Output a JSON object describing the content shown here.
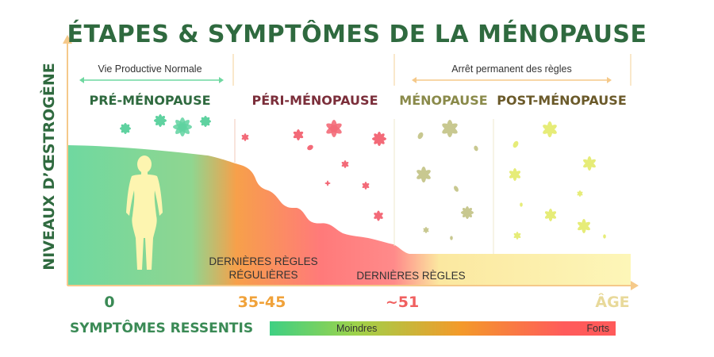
{
  "title": "ÉTAPES & SYMPTÔMES DE LA MÉNOPAUSE",
  "y_axis_label": "NIVEAUX D’ŒSTROGÈNE",
  "top_labels": {
    "normal_productive_life": "Vie Productive Normale",
    "permanent_stop": "Arrêt permanent des règles"
  },
  "phases": [
    {
      "label": "PRÉ-MÉNOPAUSE",
      "color": "#2f6a3f"
    },
    {
      "label": "PÉRI-MÉNOPAUSE",
      "color": "#7b2e3a"
    },
    {
      "label": "MÉNOPAUSE",
      "color": "#8a8a4a"
    },
    {
      "label": "POST-MÉNOPAUSE",
      "color": "#6b5a2a"
    }
  ],
  "period_labels": {
    "last_regular": "DERNIÈRES RÈGLES\nRÉGULIÈRES",
    "last": "DERNIÈRES RÈGLES"
  },
  "x_axis": {
    "ages": [
      {
        "label": "0",
        "color": "#3a8a55"
      },
      {
        "label": "35-45",
        "color": "#f0a23a"
      },
      {
        "label": "~51",
        "color": "#f06060"
      },
      {
        "label": "ÂGE",
        "color": "#e8d99a"
      }
    ]
  },
  "symptoms": {
    "label": "SYMPTÔMES RESSENTIS",
    "min": "Moindres",
    "max": "Forts"
  },
  "colors": {
    "green": "#6fd8a0",
    "orange": "#f7a04a",
    "red": "#ff6b7a",
    "yellow": "#fdf5b0",
    "axis": "#f5c98a"
  }
}
